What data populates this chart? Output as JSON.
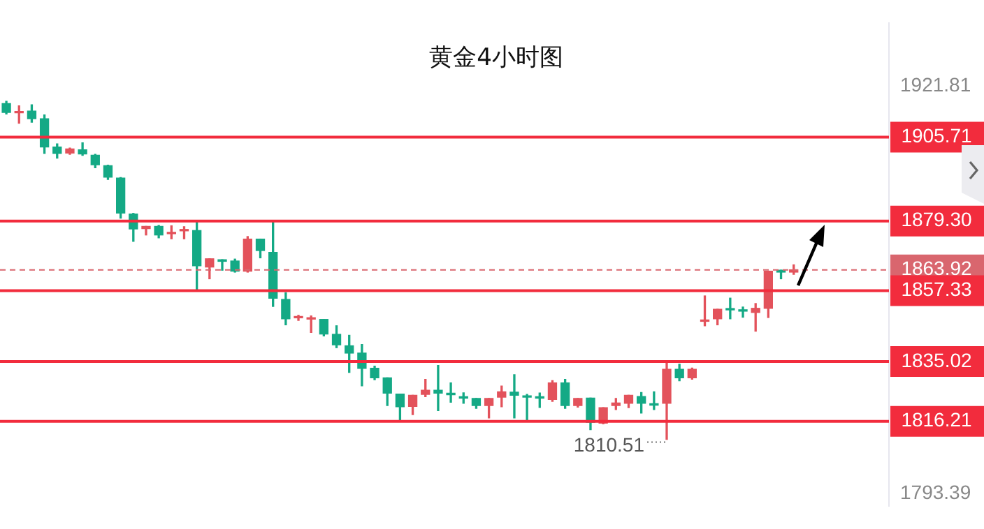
{
  "chart_data": {
    "type": "candlestick",
    "title": "黄金4小时图",
    "categories": [
      null,
      null,
      null,
      null,
      null,
      null,
      null,
      null,
      null,
      null,
      null,
      null,
      null,
      null,
      null,
      null,
      null,
      null,
      null,
      null,
      null,
      null,
      null,
      null,
      null,
      null,
      null,
      null,
      null,
      null,
      null,
      null,
      null,
      null,
      null,
      null,
      null,
      null,
      null,
      null,
      null,
      null,
      null,
      null,
      null,
      null,
      null,
      null,
      null,
      null,
      null,
      null,
      null,
      null,
      null,
      null,
      null,
      null,
      null,
      null,
      null,
      null,
      null
    ],
    "ohlc": [
      [
        1916.3,
        1917.0,
        1913.0,
        1913.5
      ],
      [
        1913.4,
        1915.6,
        1910.1,
        1913.8
      ],
      [
        1913.9,
        1915.9,
        1910.4,
        1911.5
      ],
      [
        1911.5,
        1912.7,
        1900.6,
        1902.6
      ],
      [
        1902.6,
        1903.6,
        1899.1,
        1900.6
      ],
      [
        1900.7,
        1902.3,
        1900.3,
        1902.0
      ],
      [
        1901.7,
        1903.9,
        1900.0,
        1900.4
      ],
      [
        1900.0,
        1900.3,
        1896.1,
        1897.0
      ],
      [
        1896.7,
        1896.9,
        1892.4,
        1893.1
      ],
      [
        1892.8,
        1893.0,
        1880.2,
        1881.8
      ],
      [
        1881.5,
        1881.7,
        1872.9,
        1876.8
      ],
      [
        1876.9,
        1877.6,
        1874.9,
        1877.6
      ],
      [
        1877.6,
        1877.9,
        1874.0,
        1874.9
      ],
      [
        1875.3,
        1877.8,
        1873.7,
        1875.6
      ],
      [
        1876.2,
        1877.5,
        1873.7,
        1876.5
      ],
      [
        1876.3,
        1879.3,
        1857.6,
        1865.2
      ],
      [
        1864.8,
        1867.4,
        1861.1,
        1867.4
      ],
      [
        1867.1,
        1867.1,
        1863.8,
        1866.6
      ],
      [
        1866.7,
        1867.3,
        1863.2,
        1863.5
      ],
      [
        1863.5,
        1874.4,
        1863.2,
        1873.6
      ],
      [
        1873.6,
        1873.6,
        1867.7,
        1870.0
      ],
      [
        1869.4,
        1879.3,
        1852.4,
        1855.0
      ],
      [
        1854.6,
        1856.7,
        1846.6,
        1848.5
      ],
      [
        1848.8,
        1849.6,
        1848.0,
        1849.1
      ],
      [
        1848.4,
        1849.4,
        1844.2,
        1848.7
      ],
      [
        1848.3,
        1848.3,
        1843.1,
        1843.7
      ],
      [
        1843.6,
        1846.3,
        1839.4,
        1840.3
      ],
      [
        1840.0,
        1843.3,
        1831.6,
        1837.7
      ],
      [
        1837.7,
        1840.4,
        1827.4,
        1832.9
      ],
      [
        1832.9,
        1833.6,
        1829.3,
        1829.9
      ],
      [
        1829.9,
        1829.9,
        1821.2,
        1825.1
      ],
      [
        1824.8,
        1824.8,
        1816.2,
        1820.8
      ],
      [
        1820.9,
        1824.4,
        1818.3,
        1824.4
      ],
      [
        1824.7,
        1829.4,
        1824.0,
        1826.0
      ],
      [
        1826.0,
        1833.8,
        1819.6,
        1825.1
      ],
      [
        1824.9,
        1828.3,
        1822.2,
        1824.6
      ],
      [
        1823.6,
        1825.2,
        1821.9,
        1823.5
      ],
      [
        1823.4,
        1823.4,
        1820.3,
        1821.2
      ],
      [
        1821.2,
        1823.4,
        1817.3,
        1823.4
      ],
      [
        1823.8,
        1827.3,
        1820.8,
        1825.5
      ],
      [
        1825.4,
        1830.9,
        1817.3,
        1824.4
      ],
      [
        1824.0,
        1824.7,
        1816.6,
        1823.8
      ],
      [
        1823.6,
        1825.1,
        1820.6,
        1823.5
      ],
      [
        1823.1,
        1829.0,
        1822.5,
        1828.3
      ],
      [
        1828.3,
        1829.4,
        1820.3,
        1821.2
      ],
      [
        1821.2,
        1823.4,
        1820.7,
        1823.4
      ],
      [
        1823.5,
        1823.5,
        1813.6,
        1815.9
      ],
      [
        1815.6,
        1820.5,
        1815.4,
        1820.5
      ],
      [
        1821.2,
        1823.4,
        1819.9,
        1822.0
      ],
      [
        1821.9,
        1824.4,
        1820.5,
        1824.4
      ],
      [
        1824.0,
        1825.3,
        1818.8,
        1821.9
      ],
      [
        1821.5,
        1825.5,
        1819.9,
        1821.3
      ],
      [
        1821.9,
        1834.8,
        1810.51,
        1832.6
      ],
      [
        1832.6,
        1834.2,
        1829.0,
        1829.9
      ],
      [
        1829.9,
        1833.0,
        1829.5,
        1832.6
      ],
      [
        1847.7,
        1855.7,
        1846.3,
        1847.9
      ],
      [
        1848.5,
        1851.5,
        1846.6,
        1851.5
      ],
      [
        1851.6,
        1855.0,
        1848.5,
        1851.3
      ],
      [
        1851.2,
        1852.2,
        1849.0,
        1850.9
      ],
      [
        1850.5,
        1853.3,
        1844.6,
        1851.8
      ],
      [
        1851.8,
        1863.5,
        1848.9,
        1863.5
      ],
      [
        1863.8,
        1863.8,
        1861.1,
        1863.2
      ],
      [
        1863.2,
        1865.5,
        1862.5,
        1863.92
      ]
    ],
    "colors": [
      "#14a985",
      "#e3525b",
      "#14a985",
      "#14a985",
      "#14a985",
      "#e3525b",
      "#14a985",
      "#14a985",
      "#14a985",
      "#14a985",
      "#14a985",
      "#e3525b",
      "#14a985",
      "#e3525b",
      "#e3525b",
      "#14a985",
      "#e3525b",
      "#14a985",
      "#14a985",
      "#e3525b",
      "#14a985",
      "#14a985",
      "#14a985",
      "#e3525b",
      "#e3525b",
      "#14a985",
      "#14a985",
      "#14a985",
      "#14a985",
      "#14a985",
      "#14a985",
      "#14a985",
      "#e3525b",
      "#e3525b",
      "#14a985",
      "#14a985",
      "#14a985",
      "#14a985",
      "#e3525b",
      "#e3525b",
      "#14a985",
      "#14a985",
      "#14a985",
      "#e3525b",
      "#14a985",
      "#e3525b",
      "#14a985",
      "#e3525b",
      "#e3525b",
      "#e3525b",
      "#14a985",
      "#14a985",
      "#e3525b",
      "#14a985",
      "#e3525b",
      "#e3525b",
      "#e3525b",
      "#14a985",
      "#14a985",
      "#e3525b",
      "#e3525b",
      "#14a985",
      "#e3525b"
    ],
    "ylim": [
      1789.5,
      1941.7
    ],
    "yticks": [
      1921.81,
      1793.39
    ],
    "ref_lines": [
      {
        "axis": "y",
        "value": 1905.71,
        "label": "1905.71",
        "color": "#f22c3d"
      },
      {
        "axis": "y",
        "value": 1879.3,
        "label": "1879.30",
        "color": "#f22c3d"
      },
      {
        "axis": "y",
        "value": 1863.92,
        "label": "1863.92",
        "color": "#d9666e",
        "line_style": "dashed"
      },
      {
        "axis": "y",
        "value": 1857.33,
        "label": "1857.33",
        "color": "#f22c3d"
      },
      {
        "axis": "y",
        "value": 1835.02,
        "label": "1835.02",
        "color": "#f22c3d"
      },
      {
        "axis": "y",
        "value": 1816.21,
        "label": "1816.21",
        "color": "#f22c3d"
      }
    ],
    "annotations": [
      "1810.51"
    ],
    "grid": false,
    "legend": false
  }
}
